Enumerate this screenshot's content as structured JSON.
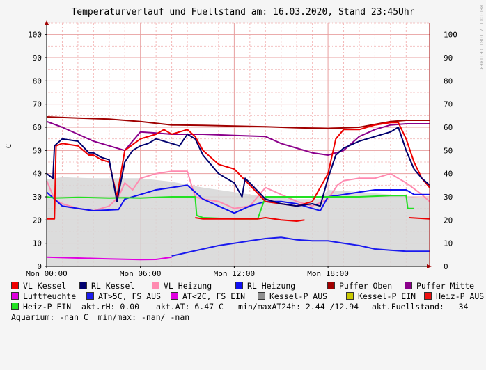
{
  "chart_data": {
    "type": "line",
    "title": "Temperaturverlauf und Fuellstand am: 16.03.2020, Stand 23:45Uhr",
    "ylabel": "C",
    "watermark": "RRDTOOL / TOBI OETIKER",
    "ylim": [
      0,
      105
    ],
    "yticks": [
      0,
      10,
      20,
      30,
      40,
      50,
      60,
      70,
      80,
      90,
      100
    ],
    "xlim_hours": [
      0,
      24.5
    ],
    "xticks": [
      {
        "h": 0,
        "label": "Mon 00:00"
      },
      {
        "h": 6,
        "label": "Mon 06:00"
      },
      {
        "h": 12,
        "label": "Mon 12:00"
      },
      {
        "h": 18,
        "label": "Mon 18:00"
      }
    ],
    "series": [
      {
        "name": "Kessel-P AUS",
        "color": "#d6d6d6",
        "kind": "area",
        "points": [
          [
            0,
            37.5
          ],
          [
            1,
            38.5
          ],
          [
            3,
            38
          ],
          [
            6,
            38
          ],
          [
            8,
            36.5
          ],
          [
            10,
            34
          ],
          [
            12,
            32
          ],
          [
            14,
            30
          ],
          [
            16,
            29
          ],
          [
            17.5,
            29
          ],
          [
            18,
            33
          ],
          [
            20,
            32
          ],
          [
            22,
            31
          ],
          [
            23,
            30
          ],
          [
            24.5,
            29.5
          ]
        ]
      },
      {
        "name": "Puffer Oben",
        "color": "#a00000",
        "points": [
          [
            0,
            64.5
          ],
          [
            2,
            64
          ],
          [
            4,
            63.5
          ],
          [
            6,
            62.5
          ],
          [
            8,
            61
          ],
          [
            10,
            60.8
          ],
          [
            12,
            60.5
          ],
          [
            14,
            60.2
          ],
          [
            16,
            59.8
          ],
          [
            18,
            59.5
          ],
          [
            20,
            60
          ],
          [
            22,
            62.5
          ],
          [
            23,
            63
          ],
          [
            24.5,
            63
          ]
        ]
      },
      {
        "name": "Puffer Mitte",
        "color": "#8b008b",
        "points": [
          [
            0,
            62.5
          ],
          [
            1,
            60
          ],
          [
            2,
            57
          ],
          [
            3,
            54
          ],
          [
            4,
            52
          ],
          [
            5,
            50
          ],
          [
            6,
            58
          ],
          [
            7,
            57.5
          ],
          [
            8,
            57
          ],
          [
            10,
            57
          ],
          [
            12,
            56.5
          ],
          [
            14,
            56
          ],
          [
            15,
            53
          ],
          [
            16,
            51
          ],
          [
            17,
            49
          ],
          [
            18,
            48
          ],
          [
            19,
            50
          ],
          [
            20,
            56
          ],
          [
            21,
            59
          ],
          [
            22,
            61
          ],
          [
            23,
            61.5
          ],
          [
            24.5,
            61.5
          ]
        ]
      },
      {
        "name": "VL Heizung",
        "color": "#ff8ab0",
        "points": [
          [
            0,
            37
          ],
          [
            0.5,
            29
          ],
          [
            1,
            27
          ],
          [
            2,
            25
          ],
          [
            3,
            24
          ],
          [
            4,
            26
          ],
          [
            4.6,
            30
          ],
          [
            5,
            36
          ],
          [
            5.5,
            33
          ],
          [
            6,
            38
          ],
          [
            7,
            40
          ],
          [
            8,
            41
          ],
          [
            9,
            41
          ],
          [
            9.5,
            30
          ],
          [
            10,
            29
          ],
          [
            11,
            28
          ],
          [
            12,
            25
          ],
          [
            13,
            26
          ],
          [
            14,
            34
          ],
          [
            15,
            31
          ],
          [
            16,
            28
          ],
          [
            17,
            26
          ],
          [
            18,
            29
          ],
          [
            18.6,
            35
          ],
          [
            19,
            37
          ],
          [
            20,
            38
          ],
          [
            21,
            38
          ],
          [
            22,
            40
          ],
          [
            23,
            36
          ],
          [
            24,
            31
          ],
          [
            24.5,
            28
          ]
        ]
      },
      {
        "name": "RL Heizung",
        "color": "#1010f0",
        "points": [
          [
            0,
            32
          ],
          [
            0.5,
            29
          ],
          [
            1,
            26
          ],
          [
            2,
            25
          ],
          [
            3,
            24
          ],
          [
            4.6,
            24.5
          ],
          [
            5,
            29
          ],
          [
            6,
            31
          ],
          [
            7,
            33
          ],
          [
            8,
            34
          ],
          [
            9,
            35
          ],
          [
            10,
            29
          ],
          [
            11,
            26
          ],
          [
            12,
            23
          ],
          [
            13,
            26
          ],
          [
            14,
            28
          ],
          [
            15,
            28
          ],
          [
            16,
            27
          ],
          [
            17,
            25
          ],
          [
            17.5,
            24
          ],
          [
            18,
            30
          ],
          [
            19,
            31
          ],
          [
            20,
            32
          ],
          [
            21,
            33
          ],
          [
            22,
            33
          ],
          [
            23,
            33
          ],
          [
            23.5,
            31
          ],
          [
            24.5,
            31
          ]
        ]
      },
      {
        "name": "Heiz-P EIN",
        "color": "#22e022",
        "points": [
          [
            0,
            30
          ],
          [
            0.5,
            29.5
          ],
          [
            2,
            29.8
          ],
          [
            4,
            29.5
          ],
          [
            5,
            29.6
          ],
          [
            6,
            29.5
          ],
          [
            7,
            29.8
          ],
          [
            8,
            30
          ],
          [
            9.5,
            30
          ],
          [
            9.6,
            22
          ],
          [
            10,
            21
          ],
          [
            12,
            20.5
          ],
          [
            13.5,
            20.5
          ],
          [
            14,
            30
          ],
          [
            15,
            30
          ],
          [
            16,
            30
          ],
          [
            17.5,
            30
          ],
          [
            18,
            30
          ],
          [
            20,
            30
          ],
          [
            22,
            30.5
          ],
          [
            23,
            30.5
          ],
          [
            23.1,
            25
          ],
          [
            23.5,
            25
          ]
        ]
      },
      {
        "name": "VL Kessel",
        "color": "#ee0000",
        "points": [
          [
            0,
            20.5
          ],
          [
            0.5,
            20.5
          ],
          [
            0.6,
            52
          ],
          [
            1,
            53
          ],
          [
            2,
            52
          ],
          [
            2.7,
            48
          ],
          [
            3,
            48
          ],
          [
            3.5,
            46
          ],
          [
            4,
            45
          ],
          [
            4.5,
            30
          ],
          [
            5,
            50
          ],
          [
            6,
            55
          ],
          [
            7,
            57
          ],
          [
            7.5,
            59
          ],
          [
            8,
            57
          ],
          [
            8.5,
            58
          ],
          [
            9,
            59
          ],
          [
            9.5,
            56
          ],
          [
            10,
            50
          ],
          [
            11,
            44
          ],
          [
            12,
            42
          ],
          [
            13,
            35
          ],
          [
            14,
            28
          ],
          [
            15,
            27
          ],
          [
            16,
            26
          ],
          [
            17,
            28
          ],
          [
            18,
            40
          ],
          [
            18.5,
            55
          ],
          [
            19,
            59
          ],
          [
            20,
            59
          ],
          [
            21,
            61
          ],
          [
            22,
            62
          ],
          [
            22.5,
            62
          ],
          [
            23,
            55
          ],
          [
            23.5,
            45
          ],
          [
            24,
            38
          ],
          [
            24.5,
            34
          ],
          "gap",
          [
            9.5,
            21
          ],
          [
            10,
            20.5
          ],
          [
            13.5,
            20.5
          ],
          [
            14,
            21
          ],
          [
            15,
            20
          ],
          [
            16,
            19.5
          ],
          [
            16.5,
            20
          ],
          "gap",
          [
            23.2,
            21
          ],
          [
            24.5,
            20.5
          ]
        ]
      },
      {
        "name": "RL Kessel",
        "color": "#00006e",
        "points": [
          [
            0,
            40
          ],
          [
            0.4,
            38
          ],
          [
            0.5,
            52
          ],
          [
            1,
            55
          ],
          [
            2,
            54
          ],
          [
            2.7,
            49
          ],
          [
            3,
            49
          ],
          [
            3.5,
            47
          ],
          [
            4,
            46
          ],
          [
            4.5,
            28
          ],
          [
            5,
            45
          ],
          [
            5.5,
            50
          ],
          [
            6,
            52
          ],
          [
            6.5,
            53
          ],
          [
            7,
            55
          ],
          [
            8,
            53
          ],
          [
            8.5,
            52
          ],
          [
            9,
            57
          ],
          [
            9.5,
            55
          ],
          [
            10,
            48
          ],
          [
            11,
            40
          ],
          [
            12,
            36
          ],
          [
            12.5,
            30
          ],
          [
            12.7,
            38
          ],
          [
            13,
            36
          ],
          [
            14,
            29
          ],
          [
            15,
            27
          ],
          [
            16,
            26
          ],
          [
            17,
            27
          ],
          [
            17.5,
            26
          ],
          [
            18,
            38
          ],
          [
            18.5,
            48
          ],
          [
            19,
            51
          ],
          [
            20,
            54
          ],
          [
            21,
            56
          ],
          [
            22,
            58
          ],
          [
            22.5,
            60
          ],
          [
            23,
            50
          ],
          [
            23.5,
            42
          ],
          [
            24,
            38
          ],
          [
            24.5,
            35
          ]
        ]
      },
      {
        "name": "Luftfeuchte",
        "color": "#e000e0",
        "points": [
          [
            0,
            4
          ],
          [
            2,
            3.6
          ],
          [
            4,
            3.2
          ],
          [
            6,
            2.9
          ],
          [
            7,
            3
          ],
          [
            8,
            4
          ]
        ]
      },
      {
        "name": "AT>5C, FS AUS",
        "color": "#1a1aee",
        "points": [
          [
            8,
            4.5
          ],
          [
            9,
            6
          ],
          [
            10,
            7.5
          ],
          [
            11,
            9
          ],
          [
            12,
            10
          ],
          [
            13,
            11
          ],
          [
            14,
            12
          ],
          [
            15,
            12.5
          ],
          [
            16,
            11.5
          ],
          [
            17,
            11
          ],
          [
            18,
            11
          ],
          [
            19,
            10
          ],
          [
            20,
            9
          ],
          [
            21,
            7.5
          ],
          [
            22,
            7
          ],
          [
            23,
            6.5
          ],
          [
            24.5,
            6.5
          ]
        ]
      }
    ],
    "legend": [
      {
        "name": "VL Kessel",
        "color": "#ee0000"
      },
      {
        "name": "RL Kessel",
        "color": "#00006e"
      },
      {
        "name": "VL Heizung",
        "color": "#ff8ab0"
      },
      {
        "name": "RL Heizung",
        "color": "#1010f0"
      },
      {
        "name": "Puffer Oben",
        "color": "#a00000"
      },
      {
        "name": "Puffer Mitte",
        "color": "#8b008b"
      },
      {
        "name": "Luftfeuchte",
        "color": "#e000e0"
      },
      {
        "name": "AT>5C, FS AUS",
        "color": "#1a1aee"
      },
      {
        "name": "AT<2C, FS EIN",
        "color": "#e000e0"
      },
      {
        "name": "Kessel-P AUS",
        "color": "#909090"
      },
      {
        "name": "Kessel-P EIN",
        "color": "#c8c800"
      },
      {
        "name": "Heiz-P AUS",
        "color": "#ee1010"
      },
      {
        "name": "Heiz-P EIN",
        "color": "#22e022"
      }
    ],
    "stats": {
      "rh": "akt.rH: 0.00",
      "at": "akt.AT: 6.47 C",
      "minmax": "min/maxAT24h: 2.44 /12.94",
      "fuellstand": "akt.Fuellstand:   34",
      "aquarium": "Aquarium: -nan C  min/max: -nan/ -nan"
    }
  }
}
